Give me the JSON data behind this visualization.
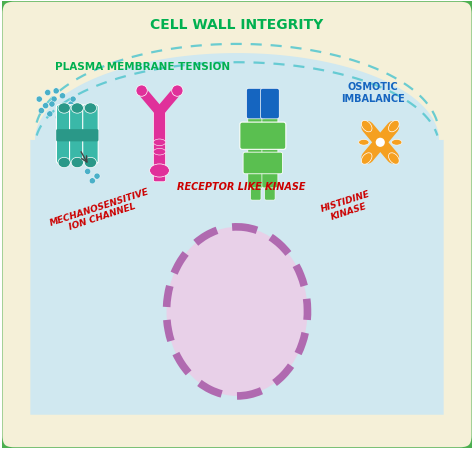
{
  "title": "CELL WALL INTEGRITY",
  "title_color": "#00b050",
  "plasma_membrane_text": "PLASMA MEMBRANE TENSION",
  "plasma_membrane_color": "#00b050",
  "label_mechanosensitive": "MECHANOSENSITIVE\nION CHANNEL",
  "label_receptor": "RECEPTOR LIKE KINASE",
  "label_histidine": "HISTIDINE\nKINASE",
  "label_osmotic": "OSMOTIC\nIMBALANCE",
  "label_color": "#cc0000",
  "osmotic_color": "#1565c0",
  "outer_border_color": "#4caf50",
  "cell_wall_color": "#4caf50",
  "inner_bg_color": "#f5f0d8",
  "cytoplasm_color": "#d0e8f0",
  "nucleus_fill": "#e8d0e8",
  "nucleus_border": "#b06ab0",
  "membrane_color1": "#5bc8d0",
  "protein_teal": "#3ab8a8",
  "protein_teal_dark": "#2a9888",
  "protein_pink": "#e0309a",
  "protein_green": "#5abf50",
  "protein_blue": "#1565c0",
  "protein_orange": "#f5a020",
  "dot_color": "#4ab0c8",
  "figsize": [
    4.74,
    4.49
  ],
  "dpi": 100
}
